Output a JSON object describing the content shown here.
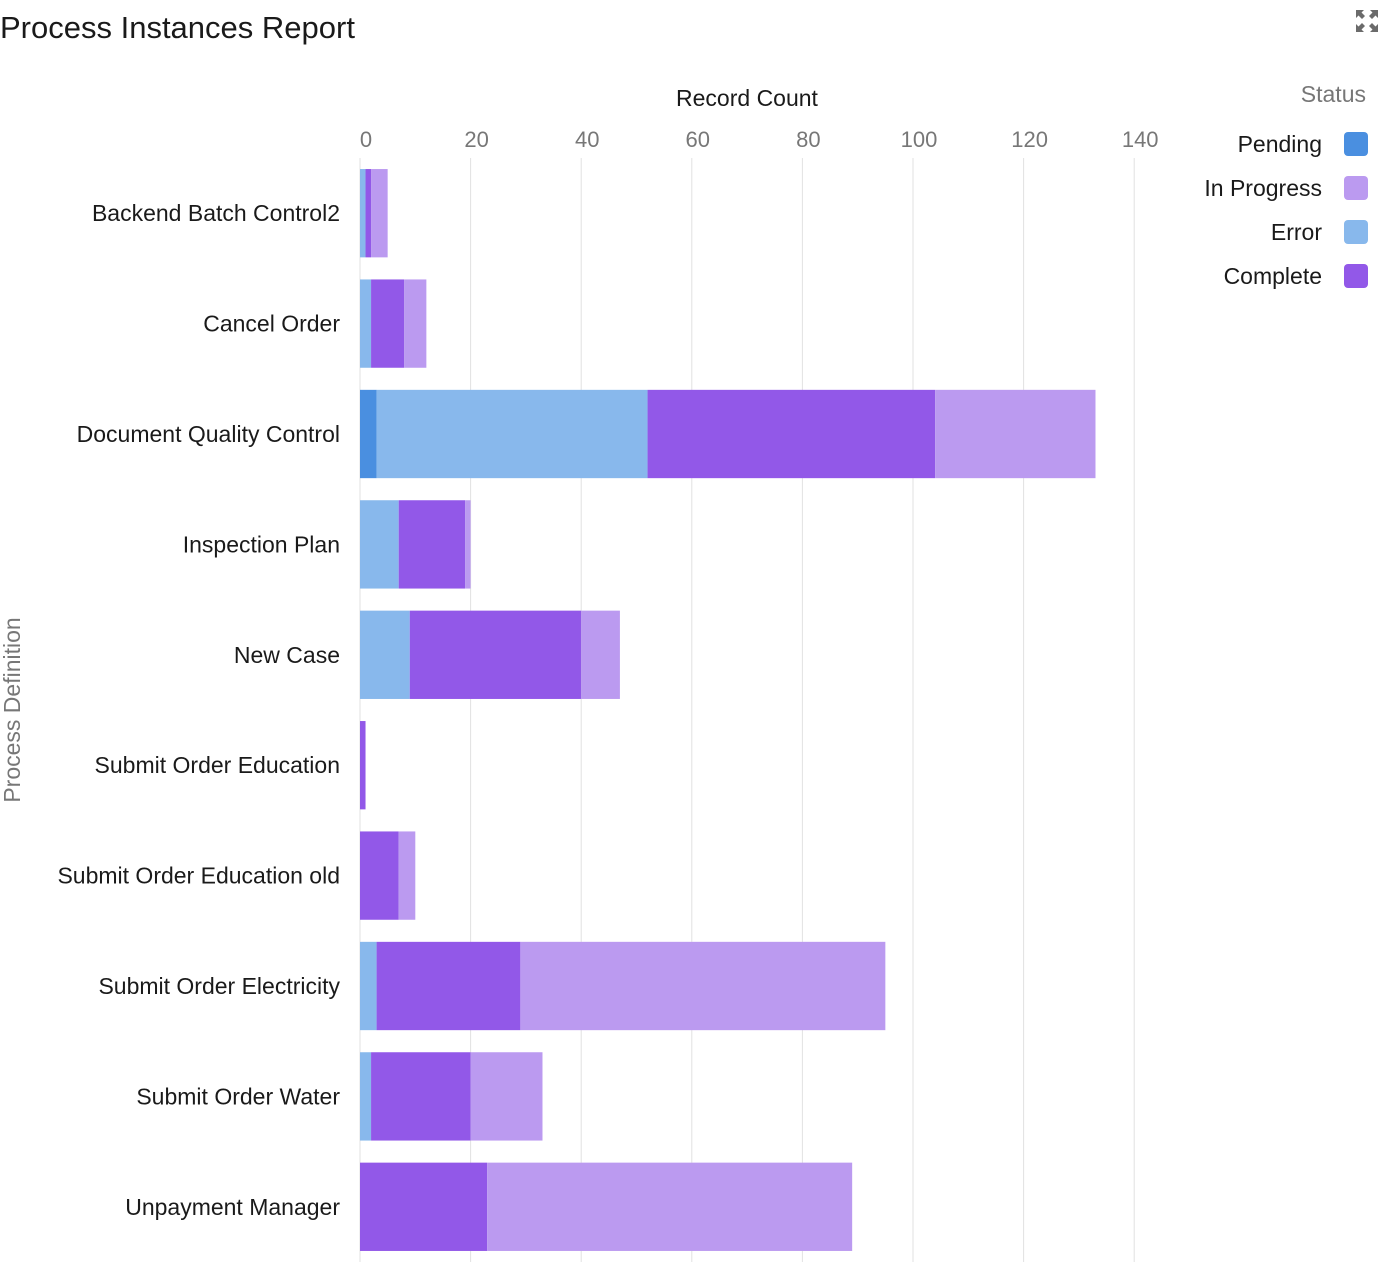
{
  "header": {
    "title": "Process Instances Report",
    "expand_icon": "expand-icon"
  },
  "chart_data": {
    "type": "bar",
    "orientation": "horizontal",
    "stacked": true,
    "title": "Process Instances Report",
    "xlabel": "Record Count",
    "ylabel": "Process Definition",
    "xlim": [
      0,
      140
    ],
    "x_ticks": [
      "0",
      "20",
      "40",
      "60",
      "80",
      "100",
      "120",
      "140"
    ],
    "grid": true,
    "legend": {
      "title": "Status",
      "placement": "top-right",
      "entries": [
        "Pending",
        "In Progress",
        "Error",
        "Complete"
      ]
    },
    "categories": [
      "Backend Batch Control2",
      "Cancel Order",
      "Document Quality Control",
      "Inspection Plan",
      "New Case",
      "Submit Order Education",
      "Submit Order Education old",
      "Submit Order Electricity",
      "Submit Order Water",
      "Unpayment Manager"
    ],
    "series": [
      {
        "name": "Pending",
        "color": "#4a8fe0",
        "values": [
          0,
          0,
          3,
          0,
          0,
          0,
          0,
          0,
          0,
          0
        ]
      },
      {
        "name": "Error",
        "color": "#88b8ec",
        "values": [
          1,
          2,
          49,
          7,
          9,
          0,
          0,
          3,
          2,
          0
        ]
      },
      {
        "name": "Complete",
        "color": "#9258e8",
        "values": [
          1,
          6,
          52,
          12,
          31,
          1,
          7,
          26,
          18,
          23
        ]
      },
      {
        "name": "In Progress",
        "color": "#bb9af0",
        "values": [
          3,
          4,
          29,
          1,
          7,
          0,
          3,
          66,
          13,
          66
        ]
      }
    ]
  }
}
